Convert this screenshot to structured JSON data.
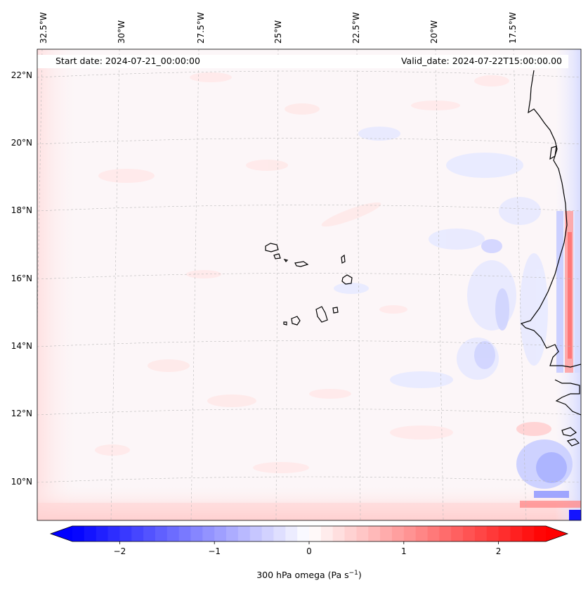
{
  "map": {
    "start_date_label": "Start date: 2024-07-21_00:00:00",
    "valid_date_label": "Valid_date: 2024-07-22T15:00:00.00",
    "lon_labels": [
      "32.5°W",
      "30°W",
      "27.5°W",
      "25°W",
      "22.5°W",
      "20°W",
      "17.5°W"
    ],
    "lat_labels": [
      "22°N",
      "20°N",
      "18°N",
      "16°N",
      "14°N",
      "12°N",
      "10°N"
    ],
    "region": "Cape Verde and West African coast",
    "gridlines": true,
    "gridline_style": "dashed-gray"
  },
  "colorbar": {
    "label_prefix": "300 hPa omega (Pa s",
    "label_exp": "−1",
    "label_suffix": ")",
    "ticks": [
      "−2",
      "−1",
      "0",
      "1",
      "2"
    ],
    "tick_values": [
      -2,
      -1,
      0,
      1,
      2
    ],
    "range": [
      -2.5,
      2.5
    ],
    "levels": 40,
    "extend": "both",
    "colormap": "bwr",
    "low_color": "#0000ff",
    "mid_color": "#ffffff",
    "high_color": "#ff0000"
  }
}
